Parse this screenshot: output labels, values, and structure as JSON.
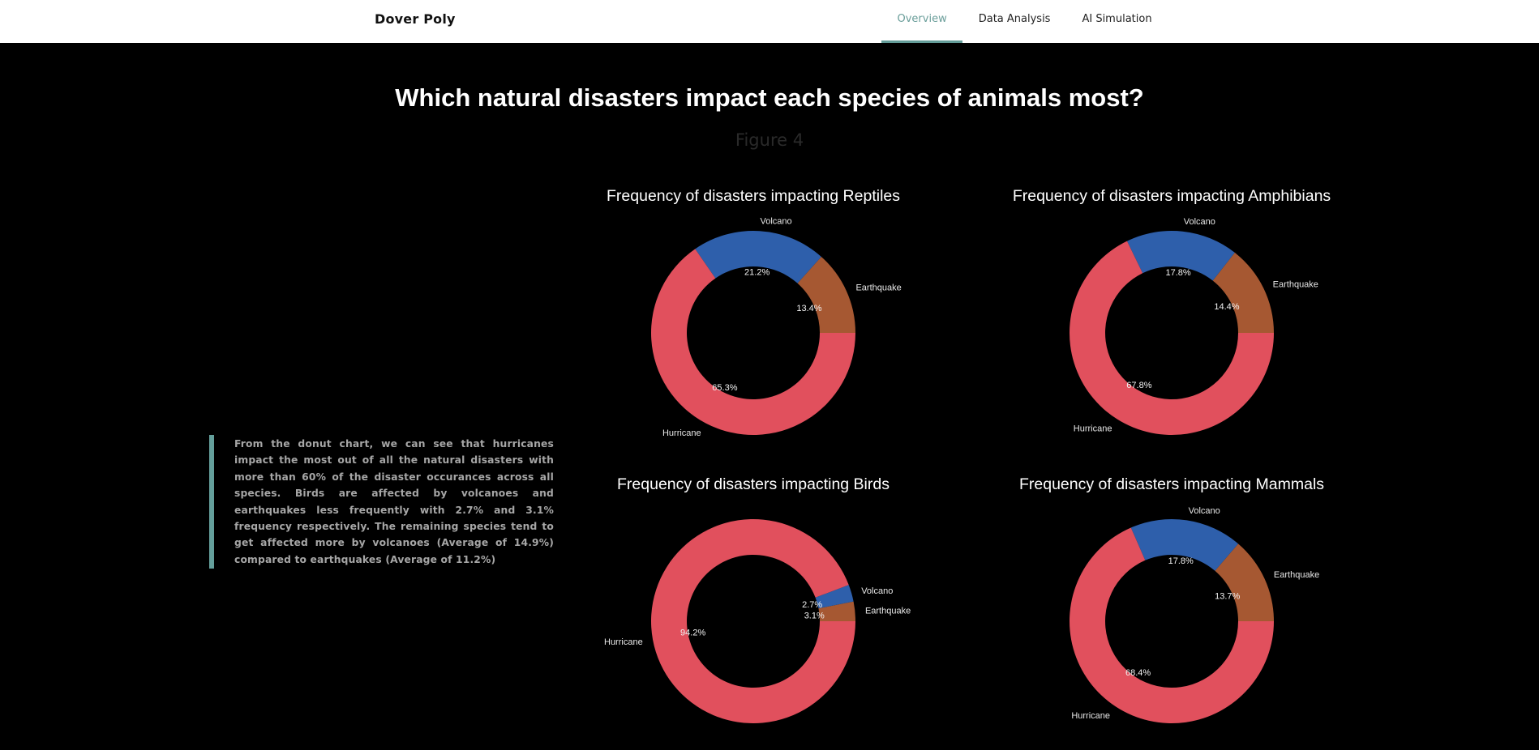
{
  "nav": {
    "brand": "Dover Poly",
    "links": [
      {
        "label": "Overview",
        "active": true
      },
      {
        "label": "Data Analysis",
        "active": false
      },
      {
        "label": "AI Simulation",
        "active": false
      }
    ]
  },
  "header": {
    "title": "Which natural disasters impact each species of animals most?",
    "figure_label": "Figure 4"
  },
  "description": "From the donut chart, we can see that hurricanes impact the most out of all the natural disasters with more than 60% of the disaster occurances across all species. Birds are affected by volcanoes and earthquakes less frequently with 2.7% and 3.1% frequency respectively. The remaining species tend to get affected more by volcanoes (Average of 14.9%) compared to earthquakes (Average of 11.2%)",
  "colors": {
    "Earthquake": "#a65832",
    "Volcano": "#2e5fab",
    "Hurricane": "#e1505d",
    "accent": "#639c98"
  },
  "chart_data": [
    {
      "type": "pie",
      "style": "donut",
      "title": "Frequency of disasters impacting Reptiles",
      "categories": [
        "Earthquake",
        "Volcano",
        "Hurricane"
      ],
      "values": [
        13.4,
        21.2,
        65.3
      ],
      "labels": [
        "13.4%",
        "21.2%",
        "65.3%"
      ]
    },
    {
      "type": "pie",
      "style": "donut",
      "title": "Frequency of disasters impacting Amphibians",
      "categories": [
        "Earthquake",
        "Volcano",
        "Hurricane"
      ],
      "values": [
        14.4,
        17.8,
        67.8
      ],
      "labels": [
        "14.4%",
        "17.8%",
        "67.8%"
      ]
    },
    {
      "type": "pie",
      "style": "donut",
      "title": "Frequency of disasters impacting Birds",
      "categories": [
        "Earthquake",
        "Volcano",
        "Hurricane"
      ],
      "values": [
        3.1,
        2.7,
        94.2
      ],
      "labels": [
        "3.1%",
        "2.7%",
        "94.2%"
      ]
    },
    {
      "type": "pie",
      "style": "donut",
      "title": "Frequency of disasters impacting Mammals",
      "categories": [
        "Earthquake",
        "Volcano",
        "Hurricane"
      ],
      "values": [
        13.7,
        17.8,
        68.4
      ],
      "labels": [
        "13.7%",
        "17.8%",
        "68.4%"
      ]
    }
  ]
}
